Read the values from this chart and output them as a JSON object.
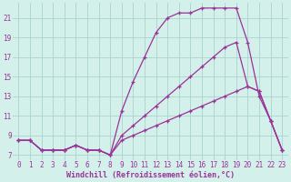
{
  "xlabel": "Windchill (Refroidissement éolien,°C)",
  "bg_color": "#d4f0ea",
  "grid_color": "#aad4cc",
  "line_color": "#993399",
  "series1_x": [
    0,
    1,
    2,
    3,
    4,
    5,
    6,
    7,
    8,
    9,
    10,
    11,
    12,
    13,
    14,
    15,
    16,
    17,
    18,
    19,
    20,
    21,
    22,
    23
  ],
  "series1_y": [
    8.5,
    8.5,
    7.5,
    7.5,
    7.5,
    8.0,
    7.5,
    7.5,
    7.0,
    11.5,
    14.5,
    17.0,
    19.5,
    21.0,
    21.5,
    21.5,
    22.0,
    22.0,
    22.0,
    22.0,
    18.5,
    13.0,
    10.5,
    7.5
  ],
  "series2_x": [
    0,
    1,
    2,
    3,
    4,
    5,
    6,
    7,
    8,
    9,
    10,
    11,
    12,
    13,
    14,
    15,
    16,
    17,
    18,
    19,
    20,
    21,
    22,
    23
  ],
  "series2_y": [
    8.5,
    8.5,
    7.5,
    7.5,
    7.5,
    8.0,
    7.5,
    7.5,
    7.0,
    9.0,
    10.0,
    11.0,
    12.0,
    13.0,
    14.0,
    15.0,
    16.0,
    17.0,
    18.0,
    18.5,
    14.0,
    13.5,
    10.5,
    7.5
  ],
  "series3_x": [
    0,
    1,
    2,
    3,
    4,
    5,
    6,
    7,
    8,
    9,
    10,
    11,
    12,
    13,
    14,
    15,
    16,
    17,
    18,
    19,
    20,
    21,
    22,
    23
  ],
  "series3_y": [
    8.5,
    8.5,
    7.5,
    7.5,
    7.5,
    8.0,
    7.5,
    7.5,
    7.0,
    8.5,
    9.0,
    9.5,
    10.0,
    10.5,
    11.0,
    11.5,
    12.0,
    12.5,
    13.0,
    13.5,
    14.0,
    13.5,
    10.5,
    7.5
  ],
  "ylim": [
    6.5,
    22.5
  ],
  "xlim": [
    -0.5,
    23.5
  ],
  "yticks": [
    7,
    9,
    11,
    13,
    15,
    17,
    19,
    21
  ],
  "xticks": [
    0,
    1,
    2,
    3,
    4,
    5,
    6,
    7,
    8,
    9,
    10,
    11,
    12,
    13,
    14,
    15,
    16,
    17,
    18,
    19,
    20,
    21,
    22,
    23
  ],
  "tick_fontsize": 5.5,
  "label_fontsize": 6.0
}
